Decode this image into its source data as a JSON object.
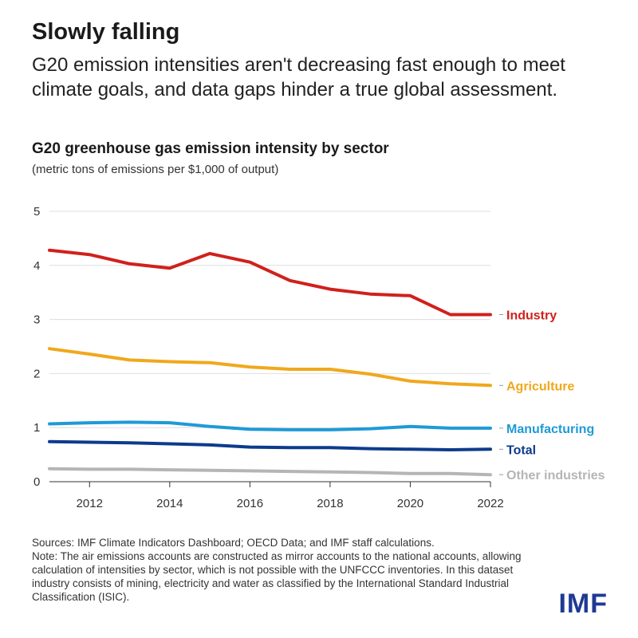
{
  "header": {
    "title": "Slowly falling",
    "subtitle": "G20 emission intensities aren't decreasing fast enough to meet climate goals, and data gaps hinder a true global assessment."
  },
  "footer": {
    "sources": "Sources: IMF Climate Indicators Dashboard; OECD Data; and IMF staff calculations.",
    "note": "Note: The air emissions accounts are constructed as mirror accounts to the national accounts, allowing calculation of intensities by sector, which is not possible with the UNFCCC inventories. In this dataset industry consists of mining, electricity and water as classified by the International Standard Industrial Classification (ISIC).",
    "logo": "IMF"
  },
  "chart_data": {
    "type": "line",
    "title": "G20 greenhouse gas emission intensity by sector",
    "subtitle": "(metric tons of emissions per $1,000 of output)",
    "xlabel": "",
    "ylabel": "",
    "x": [
      2011,
      2012,
      2013,
      2014,
      2015,
      2016,
      2017,
      2018,
      2019,
      2020,
      2021,
      2022
    ],
    "xlim": [
      2011,
      2022
    ],
    "ylim": [
      0,
      5
    ],
    "xticks": [
      2012,
      2014,
      2016,
      2018,
      2020,
      2022
    ],
    "yticks": [
      0,
      1,
      2,
      3,
      4,
      5
    ],
    "grid": "horizontal",
    "legend": "direct labels at right end of lines",
    "series": [
      {
        "name": "Industry",
        "color": "#d0211c",
        "values": [
          4.28,
          4.2,
          4.03,
          3.95,
          4.22,
          4.06,
          3.72,
          3.56,
          3.47,
          3.44,
          3.09,
          3.09
        ]
      },
      {
        "name": "Agriculture",
        "color": "#f0a81c",
        "values": [
          2.46,
          2.36,
          2.25,
          2.22,
          2.2,
          2.12,
          2.08,
          2.08,
          1.99,
          1.86,
          1.81,
          1.78
        ]
      },
      {
        "name": "Manufacturing",
        "color": "#1f9ad6",
        "values": [
          1.07,
          1.09,
          1.1,
          1.09,
          1.02,
          0.97,
          0.96,
          0.96,
          0.98,
          1.02,
          0.99,
          0.99
        ]
      },
      {
        "name": "Total",
        "color": "#0d3b8c",
        "values": [
          0.74,
          0.73,
          0.72,
          0.7,
          0.68,
          0.64,
          0.63,
          0.63,
          0.61,
          0.6,
          0.59,
          0.6
        ]
      },
      {
        "name": "Other industries",
        "color": "#b5b5b5",
        "values": [
          0.24,
          0.23,
          0.23,
          0.22,
          0.21,
          0.2,
          0.19,
          0.18,
          0.17,
          0.15,
          0.15,
          0.13
        ]
      }
    ]
  }
}
